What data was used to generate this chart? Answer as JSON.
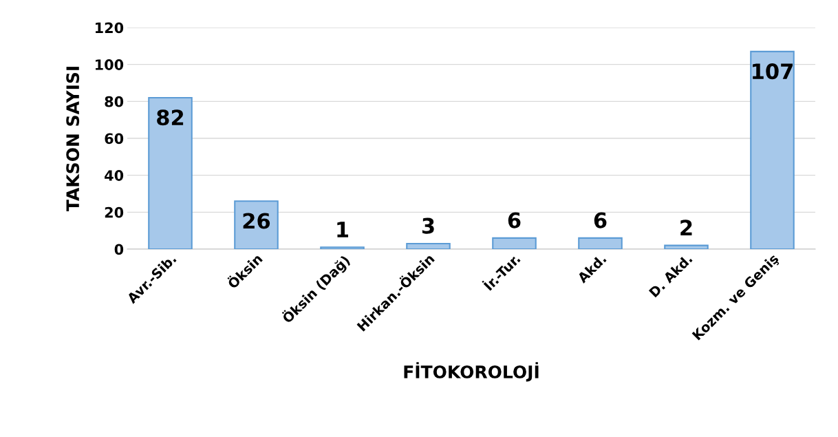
{
  "chart_data": {
    "type": "bar",
    "xlabel": "FİTOKOROLOJİ",
    "ylabel": "TAKSON SAYISI",
    "categories": [
      "Avr.-Sib.",
      "Öksin",
      "Öksin (Dağ)",
      "Hirkan.-Öksin",
      "İr.-Tur.",
      "Akd.",
      "D. Akd.",
      "Kozm. ve Geniş"
    ],
    "values": [
      82,
      26,
      1,
      3,
      6,
      6,
      2,
      107
    ],
    "color": "#a6c8ea",
    "ylim": [
      0,
      120
    ],
    "yticks": [
      0,
      20,
      40,
      60,
      80,
      100,
      120
    ],
    "grid": "y",
    "data_labels": true
  }
}
